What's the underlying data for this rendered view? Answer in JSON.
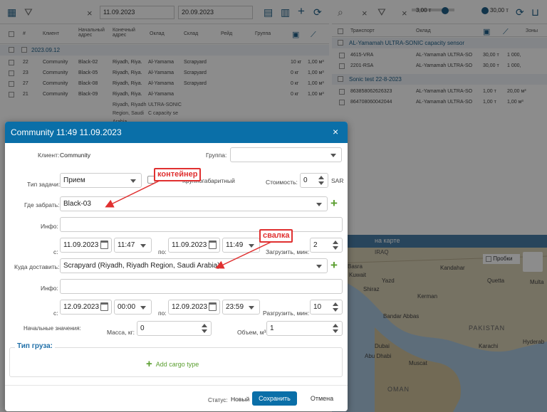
{
  "toolbar_left": {
    "date_from": "11.09.2023",
    "date_to": "20.09.2023"
  },
  "toolbar_right": {
    "volume_min": "3,00 т",
    "volume_max": "30,00 т"
  },
  "left_table": {
    "headers": [
      "#",
      "Клиент",
      "Начальный адрес",
      "Конечный адрес",
      "Оклад",
      "Склад",
      "Рейд",
      "Группа"
    ],
    "group": "2023.09.12",
    "rows": [
      {
        "num": "22",
        "client": "Community",
        "start": "Black-02",
        "end": "Riyadh, Riya.",
        "okl": "Al-Yamama",
        "sklad": "Scrapyard",
        "w": "10 кг",
        "v": "1,00 м³"
      },
      {
        "num": "23",
        "client": "Community",
        "start": "Black-05",
        "end": "Riyadh, Riya.",
        "okl": "Al-Yamama",
        "sklad": "Scrapyard",
        "w": "0 кг",
        "v": "1,00 м³"
      },
      {
        "num": "27",
        "client": "Community",
        "start": "Black-08",
        "end": "Riyadh, Riya.",
        "okl": "Al-Yamama",
        "sklad": "Scrapyard",
        "w": "0 кг",
        "v": "1,00 м³"
      },
      {
        "num": "21",
        "client": "Community",
        "start": "Black-09",
        "end": "Riyadh, Riya.",
        "okl": "Al-Yamama",
        "sklad": "",
        "w": "0 кг",
        "v": "1,00 м³"
      }
    ],
    "extra_line1": {
      "col1": "Riyadh, Riyadh",
      "col2": "ULTRA-SONIC"
    },
    "extra_line2": {
      "col1": "Region, Saudi",
      "col2": "C capacity se"
    },
    "extra_line3": {
      "col1": "Arabia",
      "col2": ""
    }
  },
  "right_table": {
    "headers": [
      "Транспорт",
      "Оклад",
      "Зоны"
    ],
    "group1": "AL-Yamamah ULTRA-SONIC capacity sensor",
    "rows1": [
      {
        "name": "4615-VRA",
        "okl": "AL-Yamamah ULTRA-SO",
        "a": "30,00 т",
        "b": "1 000,"
      },
      {
        "name": "2201-RSA",
        "okl": "AL-Yamamah ULTRA-SO",
        "a": "30,00 т",
        "b": "1 000,"
      }
    ],
    "group2": "Sonic test 22-8-2023",
    "rows2": [
      {
        "name": "863858062626323",
        "okl": "AL-Yamamah ULTRA-SO",
        "a": "1,00 т",
        "b": "20,00 м³"
      },
      {
        "name": "864708060042044",
        "okl": "AL-Yamamah ULTRA-SO",
        "a": "1,00 т",
        "b": "1,00 м³"
      }
    ]
  },
  "map": {
    "header": "на карте",
    "traffic_label": "Пробки",
    "labels": [
      "IRAQ",
      "Basra",
      "Kuwait",
      "Kandahar",
      "Quetta",
      "Multa",
      "Hyderab",
      "Bandar Abbas",
      "Karachi",
      "PAKISTAN",
      "Abu Dhabi",
      "Muscat",
      "OMAN",
      "Shiraz",
      "Kerman",
      "Yazd",
      "Dubai"
    ]
  },
  "dialog": {
    "title": "Community 11:49 11.09.2023",
    "close": "×",
    "client_label": "Клиент:",
    "client_value": "Community",
    "group_label": "Группа:",
    "group_value": "",
    "task_type_label": "Тип задачи:",
    "task_type_value": "Прием",
    "oversized_label": "Крупногабаритный",
    "cost_label": "Стоимость:",
    "cost_value": "0",
    "currency": "SAR",
    "pickup_label": "Где забрать:",
    "pickup_value": "Black-03",
    "info_label": "Инфо:",
    "info1_value": "",
    "from_label": "с:",
    "to_label": "по:",
    "pick_date_from": "11.09.2023",
    "pick_time_from": "11:47",
    "pick_date_to": "11.09.2023",
    "pick_time_to": "11:49",
    "load_label": "Загрузить, мин:",
    "load_value": "2",
    "deliver_label": "Куда доставить:",
    "deliver_value": "Scrapyard (Riyadh, Riyadh Region, Saudi Arabia)",
    "info2_value": "",
    "del_date_from": "12.09.2023",
    "del_time_from": "00:00",
    "del_date_to": "12.09.2023",
    "del_time_to": "23:59",
    "unload_label": "Разгрузить, мин:",
    "unload_value": "10",
    "initial_label": "Начальные значения:",
    "mass_label": "Масса, кг:",
    "mass_value": "0",
    "volume_label": "Объем, м³:",
    "volume_value": "1",
    "cargo_legend": "Тип груза:",
    "add_cargo": "Add cargo type",
    "status_label": "Статус:",
    "status_value": "Новый",
    "save_button": "Сохранить",
    "cancel_button": "Отмена"
  },
  "annotations": {
    "container": "контейнер",
    "dump": "свалка"
  },
  "colors": {
    "dialog_header": "#0a6fa8",
    "save_button": "#0a6fa8",
    "plus_green": "#5a9e2f",
    "annotation": "#e03030"
  }
}
